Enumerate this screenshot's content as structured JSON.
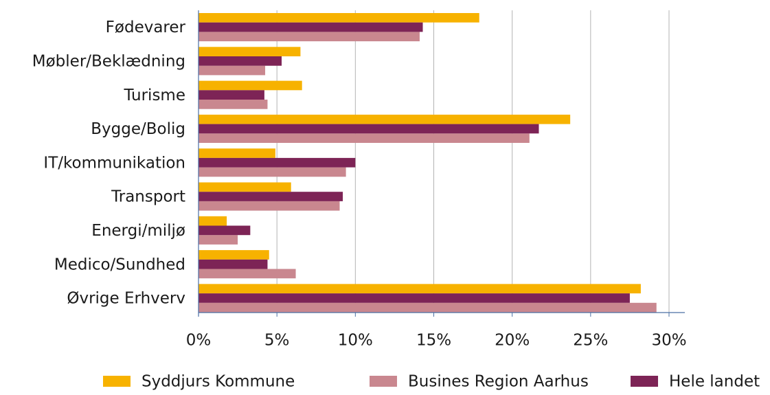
{
  "chart_data": {
    "type": "hbar",
    "categories": [
      "Fødevarer",
      "Møbler/Beklædning",
      "Turisme",
      "Bygge/Bolig",
      "IT/kommunikation",
      "Transport",
      "Energi/miljø",
      "Medico/Sundhed",
      "Øvrige Erhverv"
    ],
    "series": [
      {
        "name": "Syddjurs Kommune",
        "color": "#f7b200",
        "values": [
          17.9,
          6.5,
          6.6,
          23.7,
          4.9,
          5.9,
          1.8,
          4.5,
          28.2
        ]
      },
      {
        "name": "Busines Region Aarhus",
        "color": "#c9878f",
        "values": [
          14.1,
          4.25,
          4.4,
          21.1,
          9.4,
          9.0,
          2.5,
          6.2,
          29.2
        ]
      },
      {
        "name": "Hele landet",
        "color": "#7d2456",
        "values": [
          14.3,
          5.3,
          4.2,
          21.7,
          10.0,
          9.2,
          3.3,
          4.4,
          27.5
        ]
      }
    ],
    "xlim": [
      0,
      30
    ],
    "xticks": [
      {
        "value": 0,
        "label": "0%"
      },
      {
        "value": 5,
        "label": "5%"
      },
      {
        "value": 10,
        "label": "10%"
      },
      {
        "value": 15,
        "label": "15%"
      },
      {
        "value": 20,
        "label": "20%"
      },
      {
        "value": 25,
        "label": "25%"
      },
      {
        "value": 30,
        "label": "30%"
      }
    ],
    "grid": true
  }
}
